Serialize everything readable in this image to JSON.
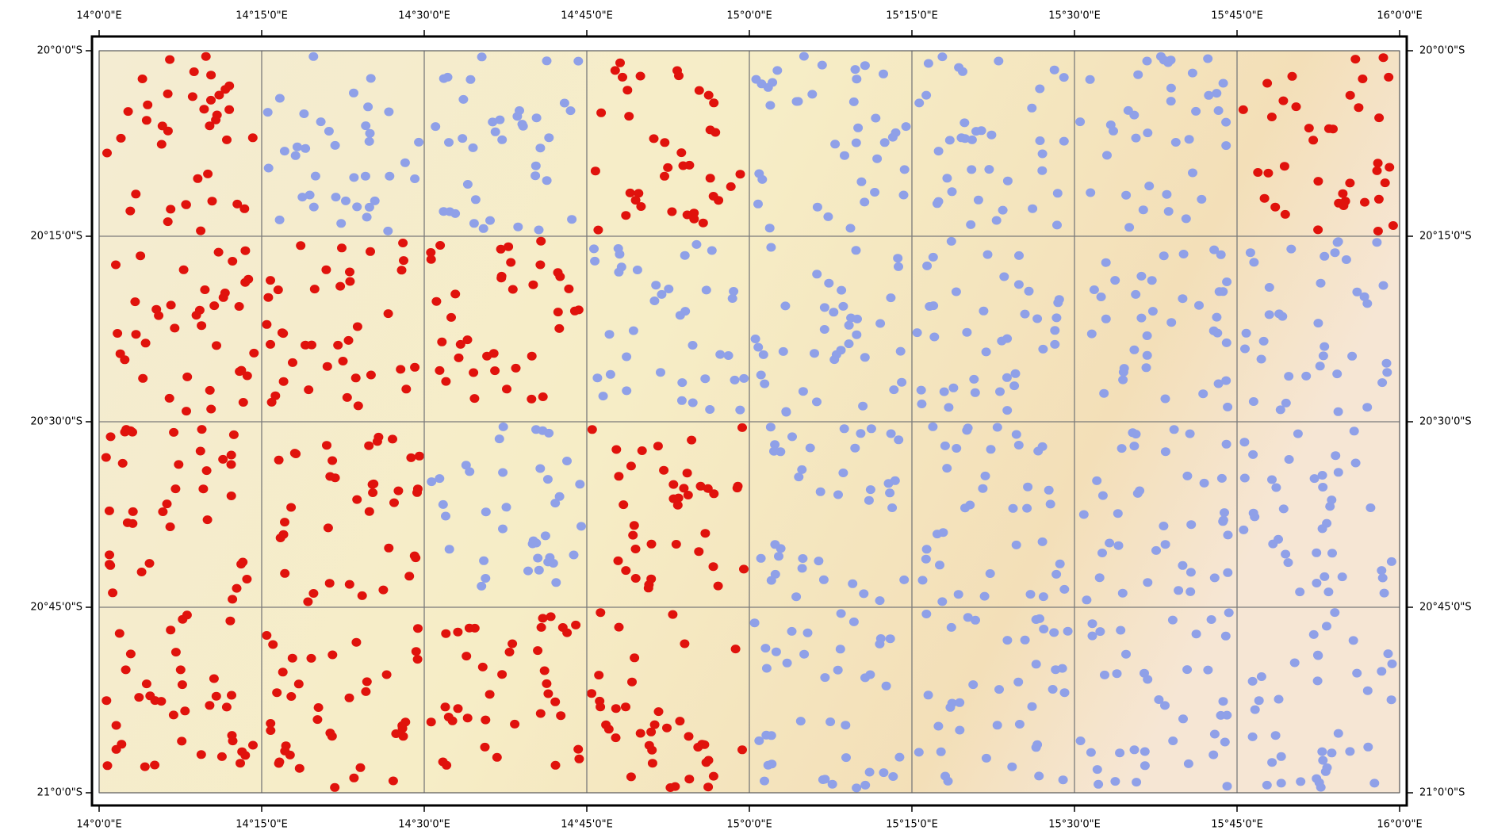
{
  "map": {
    "longitude_labels": [
      "14°0'0\"E",
      "14°15'0\"E",
      "14°30'0\"E",
      "14°45'0\"E",
      "15°0'0\"E",
      "15°15'0\"E",
      "15°30'0\"E",
      "15°45'0\"E",
      "16°0'0\"E"
    ],
    "latitude_labels": [
      "20°0'0\"S",
      "20°15'0\"S",
      "20°30'0\"S",
      "20°45'0\"S",
      "21°0'0\"S"
    ]
  }
}
